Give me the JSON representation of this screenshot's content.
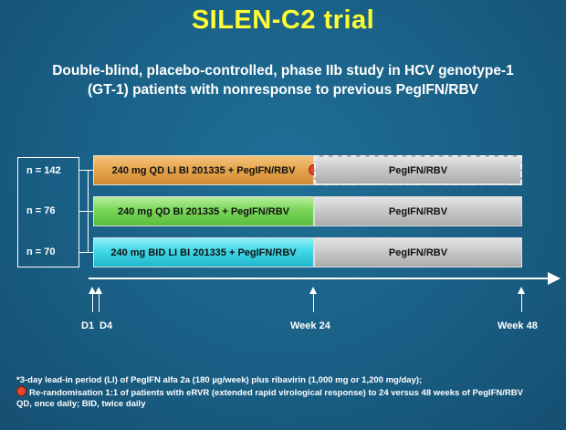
{
  "title": "SILEN-C2 trial",
  "subtitle": "Double-blind, placebo-controlled, phase IIb study in HCV genotype-1 (GT-1) patients with nonresponse to previous PegIFN/RBV",
  "arms": [
    {
      "n": "n = 142",
      "label": "240 mg QD LI BI 201335 + PegIFN/RBV",
      "marker": "*",
      "color": "#e6a64f",
      "followup": "PegIFN/RBV",
      "followup_dashed": true,
      "rerandomization": true
    },
    {
      "n": "n = 76",
      "label": "240 mg QD BI 201335 + PegIFN/RBV",
      "marker": "",
      "color": "#7ad65a",
      "followup": "PegIFN/RBV",
      "followup_dashed": false,
      "rerandomization": false
    },
    {
      "n": "n = 70",
      "label": "240 mg BID LI BI 201335 + PegIFN/RBV",
      "marker": "*",
      "color": "#40d7e6",
      "followup": "PegIFN/RBV",
      "followup_dashed": false,
      "rerandomization": false
    }
  ],
  "timeline": {
    "ticks": [
      "D1",
      "D4",
      "Week 24",
      "Week 48"
    ]
  },
  "footnotes": {
    "lead_in": "*3-day lead-in period (LI) of PegIFN alfa 2a (180 µg/week) plus ribavirin (1,000 mg or 1,200 mg/day);",
    "rerandomization": "Re-randomisation 1:1 of patients with eRVR (extended rapid virological response) to 24 versus 48 weeks of PegIFN/RBV",
    "abbreviations": "QD, once daily; BID, twice daily"
  }
}
